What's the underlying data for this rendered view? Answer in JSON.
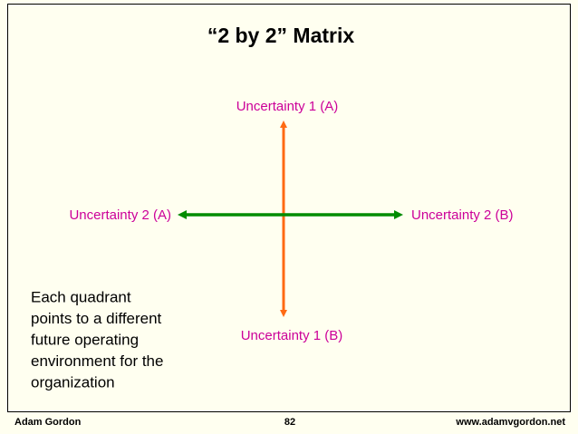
{
  "title": "“2 by 2” Matrix",
  "axes": {
    "vertical": {
      "top_label": "Uncertainty 1 (A)",
      "bottom_label": "Uncertainty 1 (B)"
    },
    "horizontal": {
      "left_label": "Uncertainty 2 (A)",
      "right_label": "Uncertainty 2 (B)"
    }
  },
  "note": {
    "lines": [
      "Each quadrant",
      "points to a different",
      "future operating",
      "environment for the",
      "organization"
    ]
  },
  "footer": {
    "left": "Adam Gordon",
    "center": "82",
    "right": "www.adamvgordon.net"
  }
}
